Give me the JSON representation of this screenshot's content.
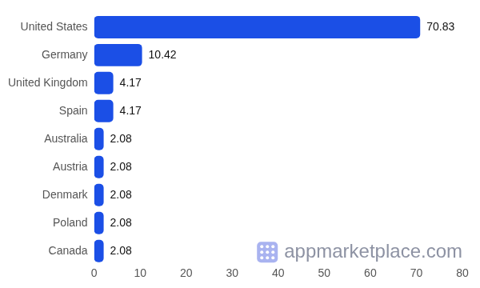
{
  "chart_data": {
    "type": "bar",
    "orientation": "horizontal",
    "categories": [
      "United States",
      "Germany",
      "United Kingdom",
      "Spain",
      "Australia",
      "Austria",
      "Denmark",
      "Poland",
      "Canada"
    ],
    "values": [
      70.83,
      10.42,
      4.17,
      4.17,
      2.08,
      2.08,
      2.08,
      2.08,
      2.08
    ],
    "color": "#1b4fe6",
    "xlim": [
      0,
      80
    ],
    "xticks": [
      0,
      10,
      20,
      30,
      40,
      50,
      60,
      70,
      80
    ],
    "grid": false,
    "data_labels": true,
    "annotation": "appmarketplace.com"
  }
}
